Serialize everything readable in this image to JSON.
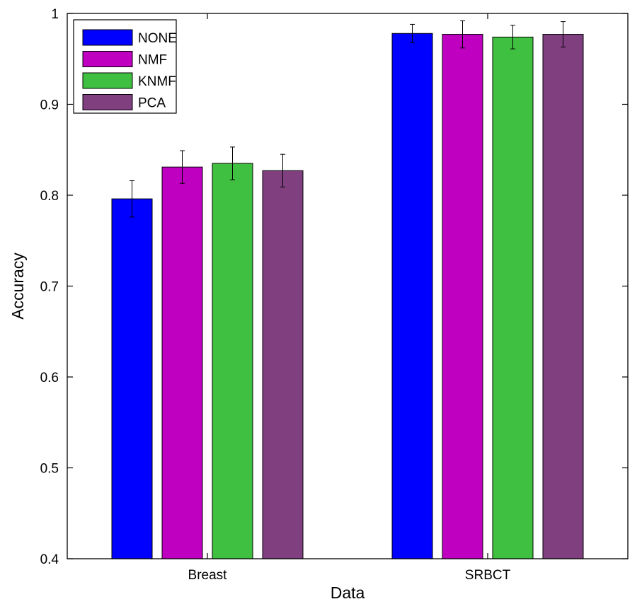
{
  "chart_data": {
    "type": "bar",
    "title": "",
    "xlabel": "Data",
    "ylabel": "Accuracy",
    "categories": [
      "Breast",
      "SRBCT"
    ],
    "ylim": [
      0.4,
      1
    ],
    "yticks": [
      "0.4",
      "0.5",
      "0.6",
      "0.7",
      "0.8",
      "0.9",
      "1"
    ],
    "grid": false,
    "legend_position": "top-left",
    "series": [
      {
        "name": "NONE",
        "color": "#0000ff",
        "values": [
          0.796,
          0.978
        ],
        "errors": [
          0.02,
          0.01
        ]
      },
      {
        "name": "NMF",
        "color": "#c000c0",
        "values": [
          0.831,
          0.977
        ],
        "errors": [
          0.018,
          0.015
        ]
      },
      {
        "name": "KNMF",
        "color": "#40c040",
        "values": [
          0.835,
          0.974
        ],
        "errors": [
          0.018,
          0.013
        ]
      },
      {
        "name": "PCA",
        "color": "#804080",
        "values": [
          0.827,
          0.977
        ],
        "errors": [
          0.018,
          0.014
        ]
      }
    ]
  }
}
